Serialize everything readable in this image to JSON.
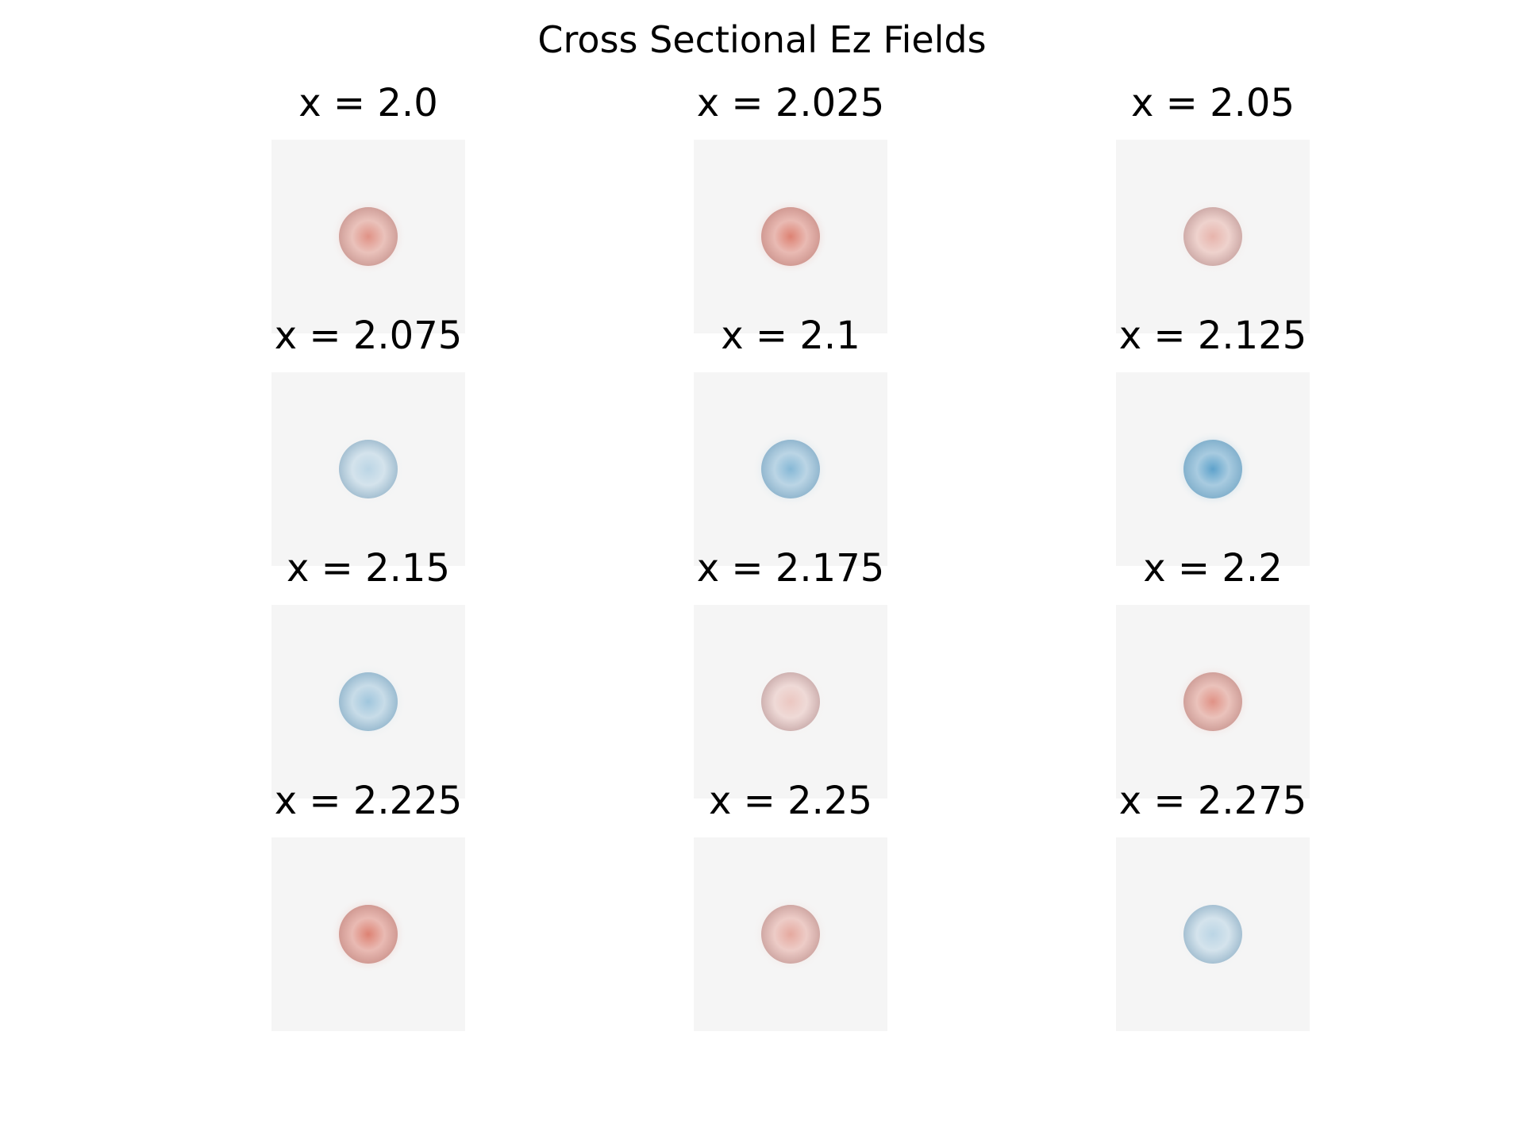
{
  "chart_data": {
    "type": "heatmap",
    "title": "Cross Sectional Ez Fields",
    "colormap": "diverging red-blue",
    "background_color": "#f5f5f5",
    "grid": false,
    "panels": [
      {
        "label": "x = 2.0",
        "field": 0.55
      },
      {
        "label": "x = 2.025",
        "field": 0.7
      },
      {
        "label": "x = 2.05",
        "field": 0.25
      },
      {
        "label": "x = 2.075",
        "field": -0.1
      },
      {
        "label": "x = 2.1",
        "field": -0.5
      },
      {
        "label": "x = 2.125",
        "field": -0.8
      },
      {
        "label": "x = 2.15",
        "field": -0.3
      },
      {
        "label": "x = 2.175",
        "field": 0.08
      },
      {
        "label": "x = 2.2",
        "field": 0.55
      },
      {
        "label": "x = 2.225",
        "field": 0.7
      },
      {
        "label": "x = 2.25",
        "field": 0.35
      },
      {
        "label": "x = 2.275",
        "field": -0.1
      }
    ]
  }
}
